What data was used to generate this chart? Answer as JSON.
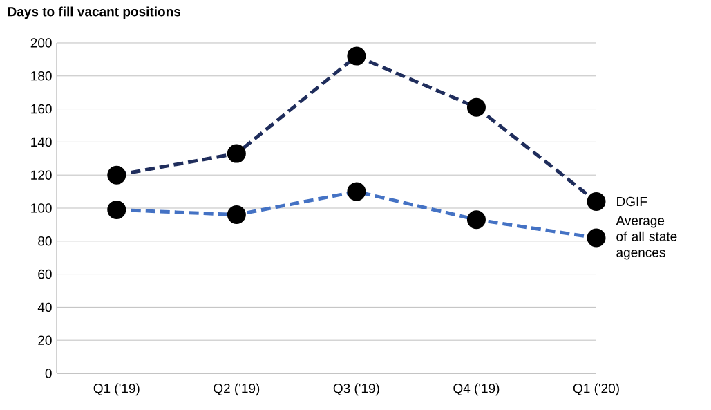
{
  "chart_data": {
    "type": "line",
    "title": "Days to fill vacant positions",
    "categories": [
      "Q1 ('19)",
      "Q2 ('19)",
      "Q3 ('19)",
      "Q4 ('19)",
      "Q1 ('20)"
    ],
    "series": [
      {
        "name": "DGIF",
        "color": "#1f2d5c",
        "values": [
          120,
          133,
          192,
          161,
          104
        ]
      },
      {
        "name": "Average of all state agences",
        "color": "#4472c4",
        "values": [
          99,
          96,
          110,
          93,
          82
        ]
      }
    ],
    "ylim": [
      0,
      200
    ],
    "yticks": [
      0,
      20,
      40,
      60,
      80,
      100,
      120,
      140,
      160,
      180,
      200
    ],
    "grid": "y",
    "legend": "right",
    "marker": "circle",
    "line_style": "dashed"
  }
}
